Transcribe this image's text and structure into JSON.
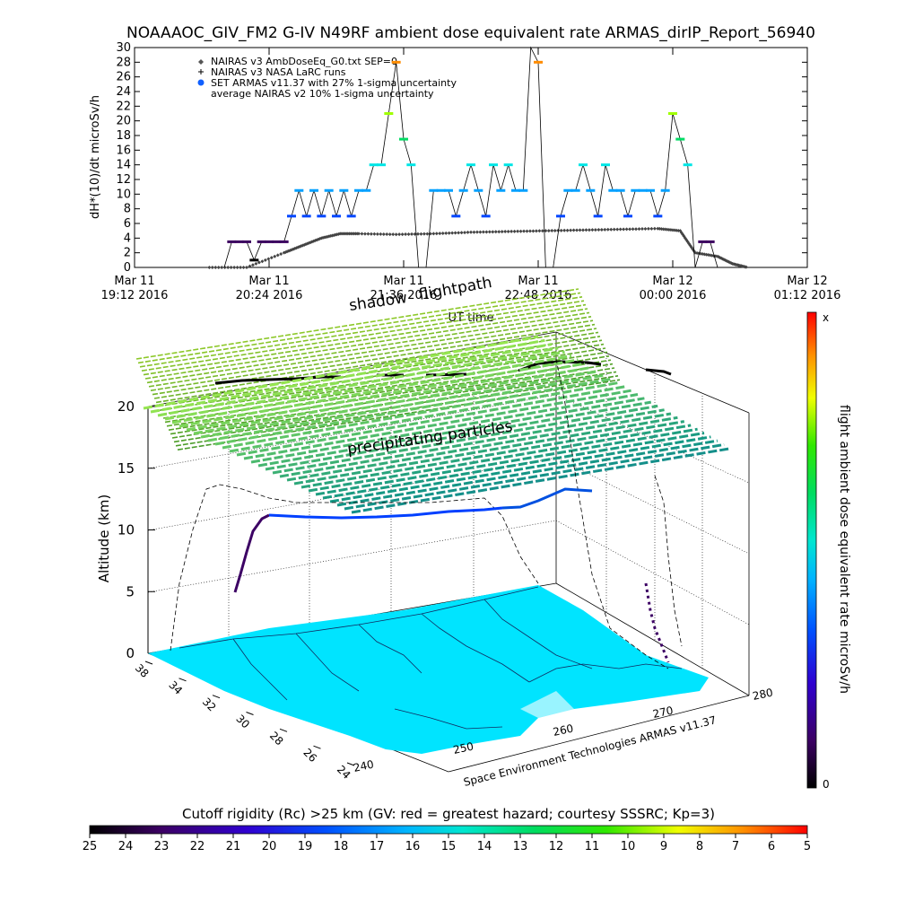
{
  "header": {
    "title": "NOAAAOC_GIV_FM2 G-IV   N49RF  ambient dose equivalent rate ARMAS_dirIP_Report_56940"
  },
  "chart_data": [
    {
      "type": "scatter",
      "ylabel": "dH*(10)/dt microSv/h",
      "xlabel": "UT time",
      "ylim": [
        0,
        30
      ],
      "yticks": [
        0,
        2,
        4,
        6,
        8,
        10,
        12,
        14,
        16,
        18,
        20,
        22,
        24,
        26,
        28,
        30
      ],
      "xticks": [
        {
          "date": "Mar 11",
          "time": "19:12 2016",
          "t": 0
        },
        {
          "date": "Mar 11",
          "time": "20:24 2016",
          "t": 72
        },
        {
          "date": "Mar 11",
          "time": "21:36 2016",
          "t": 144
        },
        {
          "date": "Mar 11",
          "time": "22:48 2016",
          "t": 216
        },
        {
          "date": "Mar 12",
          "time": "00:00 2016",
          "t": 288
        },
        {
          "date": "Mar 12",
          "time": "01:12 2016",
          "t": 360
        }
      ],
      "legend_position": "top-left",
      "legend": [
        {
          "symbol": "diamond",
          "text": "NAIRAS v3 AmbDoseEq_G0.txt SEP=0"
        },
        {
          "symbol": "plus",
          "text": "NAIRAS v3 NASA LaRC runs"
        },
        {
          "symbol": "dot",
          "text": "SET ARMAS v11.37 with 27% 1-sigma uncertainty"
        },
        {
          "symbol": "none",
          "text": "average NAIRAS v2 10% 1-sigma uncertainty"
        }
      ],
      "series": [
        {
          "name": "SET ARMAS v11.37 with 27% 1-sigma uncertainty",
          "x": [
            48,
            52,
            56,
            60,
            64,
            68,
            72,
            76,
            80,
            84,
            88,
            92,
            96,
            100,
            104,
            108,
            112,
            116,
            120,
            124,
            128,
            132,
            136,
            140,
            144,
            148,
            152,
            156,
            160,
            164,
            168,
            172,
            176,
            180,
            184,
            188,
            192,
            196,
            200,
            204,
            208,
            212,
            216,
            220,
            224,
            228,
            232,
            236,
            240,
            244,
            248,
            252,
            256,
            260,
            264,
            268,
            272,
            276,
            280,
            284,
            288,
            292,
            296,
            300,
            304,
            308,
            312
          ],
          "y": [
            0,
            3.5,
            3.5,
            3.5,
            1,
            3.5,
            3.5,
            3.5,
            3.5,
            7,
            10.5,
            7,
            10.5,
            7,
            10.5,
            7,
            10.5,
            7,
            10.5,
            10.5,
            14,
            14,
            21,
            28,
            17.5,
            14,
            0,
            0,
            10.5,
            10.5,
            10.5,
            7,
            10.5,
            14,
            10.5,
            7,
            14,
            10.5,
            14,
            10.5,
            10.5,
            30,
            28,
            0,
            0,
            7,
            10.5,
            10.5,
            14,
            10.5,
            7,
            14,
            10.5,
            10.5,
            7,
            10.5,
            10.5,
            10.5,
            7,
            10.5,
            21,
            17.5,
            14,
            0,
            3.5,
            3.5,
            0
          ]
        },
        {
          "name": "NAIRAS v3 AmbDoseEq_G0.txt SEP=0",
          "x": [
            40,
            60,
            80,
            90,
            100,
            110,
            120,
            140,
            160,
            180,
            200,
            220,
            240,
            260,
            280,
            292,
            300,
            312,
            320,
            328
          ],
          "y": [
            0,
            0,
            2,
            3,
            4,
            4.6,
            4.6,
            4.5,
            4.6,
            4.8,
            4.9,
            5,
            5.1,
            5.2,
            5.3,
            5,
            2,
            1.5,
            0.5,
            0
          ]
        }
      ]
    },
    {
      "type": "scatter",
      "zlabel": "Altitude (km)",
      "zticks": [
        0,
        5,
        10,
        15,
        20
      ],
      "lat_ticks": [
        38,
        34,
        32,
        30,
        28,
        26,
        24
      ],
      "lon_ticks": [
        240,
        250,
        260,
        270,
        280
      ],
      "annotations": [
        "shadow",
        "flightpath",
        "precipitating particles",
        "Space Environment Technologies ARMAS v11.37"
      ],
      "colorbar_label": "flight ambient dose equivalent rate microSv/h",
      "colorbar_top": "x",
      "colorbar_bottom": "0"
    },
    {
      "type": "heatmap",
      "title": "Cutoff rigidity (Rc) >25 km (GV: red = greatest hazard; courtesy SSSRC; Kp=3)",
      "ticks": [
        "25",
        "24",
        "23",
        "22",
        "21",
        "20",
        "19",
        "18",
        "17",
        "16",
        "15",
        "14",
        "13",
        "12",
        "11",
        "10",
        "9",
        "8",
        "7",
        "6",
        "5"
      ]
    }
  ],
  "colors": {
    "rainbow": [
      "#000000",
      "#3c0060",
      "#3c00c8",
      "#0046ff",
      "#00a0ff",
      "#00e6e6",
      "#00dc64",
      "#00e600",
      "#a0ff00",
      "#ffe600",
      "#ff8c00",
      "#ff0000"
    ],
    "map_fill": "#00e0ff",
    "map_lines": "#102040",
    "grid": "#000000"
  }
}
